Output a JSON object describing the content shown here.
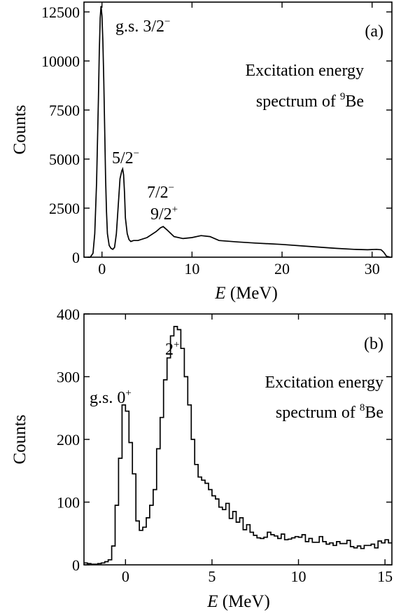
{
  "chart_data": [
    {
      "panel": "(a)",
      "type": "line",
      "xlabel_italic": "E",
      "xlabel_unit": " (MeV)",
      "ylabel": "Counts",
      "xlim": [
        -2,
        32.2
      ],
      "ylim": [
        0,
        13000
      ],
      "xticks": [
        0,
        10,
        20,
        30
      ],
      "yticks": [
        0,
        2500,
        5000,
        7500,
        10000,
        12500
      ],
      "grid": false,
      "text_lines": [
        {
          "text": "Excitation energy"
        },
        {
          "text": "spectrum of ",
          "sup": "9",
          "after": "Be"
        }
      ],
      "peak_labels": [
        {
          "text": "g.s. 3/2",
          "sup": "−",
          "x": 0.0
        },
        {
          "text": "5/2",
          "sup": "−",
          "x": 2.4
        },
        {
          "text": "7/2",
          "sup": "−",
          "x": 6.7
        },
        {
          "text": "9/2",
          "sup": "+",
          "x": 6.7
        }
      ],
      "series": [
        {
          "x": [
            -1.6,
            -1.3,
            -1.0,
            -0.8,
            -0.6,
            -0.4,
            -0.3,
            -0.2,
            -0.1,
            0.0,
            0.1,
            0.2,
            0.3,
            0.4,
            0.5,
            0.6,
            0.8,
            1.0,
            1.2,
            1.4,
            1.6,
            1.8,
            2.0,
            2.2,
            2.3,
            2.4,
            2.5,
            2.6,
            2.8,
            3.0,
            3.2,
            3.5,
            4.0,
            5.0,
            6.0,
            6.5,
            6.8,
            7.2,
            8.0,
            9.0,
            10.0,
            11.0,
            12.0,
            13.0,
            15.0,
            17.0,
            20.0,
            23.0,
            26.0,
            28.0,
            29.5,
            30.5,
            31.0,
            31.3,
            31.6,
            32.0
          ],
          "values": [
            0,
            0,
            200,
            1200,
            3800,
            8000,
            10500,
            12200,
            12800,
            12300,
            11000,
            9000,
            6500,
            4000,
            2300,
            1200,
            600,
            450,
            400,
            500,
            1200,
            2600,
            4000,
            4400,
            4500,
            4200,
            3300,
            2000,
            1200,
            900,
            800,
            850,
            850,
            1000,
            1300,
            1500,
            1560,
            1400,
            1050,
            950,
            1000,
            1100,
            1050,
            850,
            780,
            720,
            650,
            550,
            450,
            400,
            380,
            400,
            380,
            250,
            50,
            0
          ]
        }
      ]
    },
    {
      "panel": "(b)",
      "type": "line",
      "xlabel_italic": "E",
      "xlabel_unit": " (MeV)",
      "ylabel": "Counts",
      "xlim": [
        -2.4,
        15.4
      ],
      "ylim": [
        0,
        400
      ],
      "xticks": [
        0,
        5,
        10,
        15
      ],
      "yticks": [
        0,
        100,
        200,
        300,
        400
      ],
      "grid": false,
      "text_lines": [
        {
          "text": "Excitation energy"
        },
        {
          "text": "spectrum of ",
          "sup": "8",
          "after": "Be"
        }
      ],
      "peak_labels": [
        {
          "text": "g.s. 0",
          "sup": "+",
          "x": 0.0
        },
        {
          "text": "2",
          "sup": "+",
          "x": 3.0
        }
      ],
      "series": [
        {
          "x": [
            -2.4,
            -2.2,
            -2.0,
            -1.8,
            -1.6,
            -1.4,
            -1.2,
            -1.0,
            -0.8,
            -0.6,
            -0.4,
            -0.2,
            0.0,
            0.2,
            0.4,
            0.6,
            0.8,
            1.0,
            1.2,
            1.4,
            1.6,
            1.8,
            2.0,
            2.2,
            2.4,
            2.6,
            2.8,
            3.0,
            3.2,
            3.4,
            3.6,
            3.8,
            4.0,
            4.2,
            4.4,
            4.6,
            4.8,
            5.0,
            5.2,
            5.4,
            5.6,
            5.8,
            6.0,
            6.2,
            6.4,
            6.6,
            6.8,
            7.0,
            7.2,
            7.4,
            7.6,
            7.8,
            8.0,
            8.2,
            8.4,
            8.6,
            8.8,
            9.0,
            9.2,
            9.4,
            9.6,
            9.8,
            10.0,
            10.2,
            10.4,
            10.6,
            10.8,
            11.0,
            11.2,
            11.4,
            11.6,
            11.8,
            12.0,
            12.2,
            12.4,
            12.6,
            12.8,
            13.0,
            13.2,
            13.4,
            13.6,
            13.8,
            14.0,
            14.2,
            14.4,
            14.6,
            14.8,
            15.0,
            15.2
          ],
          "values": [
            3,
            2,
            1,
            1,
            2,
            3,
            5,
            8,
            30,
            95,
            170,
            255,
            245,
            195,
            145,
            70,
            55,
            60,
            75,
            95,
            120,
            185,
            235,
            295,
            330,
            365,
            380,
            375,
            345,
            300,
            255,
            200,
            160,
            140,
            135,
            130,
            120,
            110,
            105,
            92,
            88,
            98,
            74,
            85,
            68,
            75,
            56,
            64,
            52,
            47,
            43,
            42,
            44,
            52,
            48,
            46,
            42,
            49,
            40,
            41,
            43,
            45,
            44,
            48,
            37,
            42,
            36,
            36,
            45,
            37,
            33,
            35,
            31,
            37,
            34,
            34,
            39,
            29,
            27,
            30,
            26,
            31,
            31,
            33,
            27,
            38,
            35,
            40,
            35
          ]
        }
      ]
    }
  ]
}
